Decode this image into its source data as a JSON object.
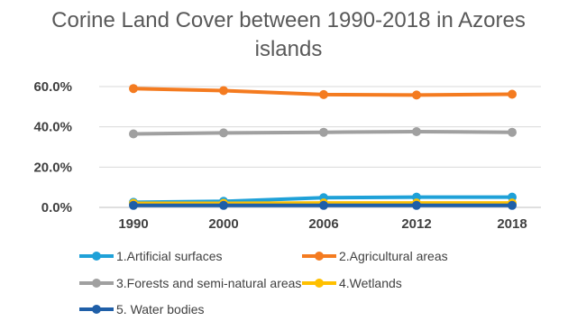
{
  "chart_data": {
    "type": "line",
    "title_lines": [
      "Corine Land Cover between 1990-2018 in Azores",
      "islands"
    ],
    "categories": [
      "1990",
      "2000",
      "2006",
      "2012",
      "2018"
    ],
    "y_ticks": [
      "0.0%",
      "20.0%",
      "40.0%",
      "60.0%"
    ],
    "ylim": [
      0,
      60
    ],
    "grid": true,
    "legend_position": "bottom",
    "series": [
      {
        "name": "1.Artificial surfaces",
        "color": "#1fa1d8",
        "values": [
          2.5,
          3.0,
          4.8,
          5.1,
          5.1
        ]
      },
      {
        "name": "2.Agricultural areas",
        "color": "#f47b20",
        "values": [
          59.0,
          58.0,
          56.0,
          55.8,
          56.2
        ]
      },
      {
        "name": "3.Forests and semi-natural areas",
        "color": "#a0a0a0",
        "values": [
          36.5,
          37.0,
          37.3,
          37.6,
          37.3
        ]
      },
      {
        "name": "4.Wetlands",
        "color": "#ffc000",
        "values": [
          2.0,
          2.0,
          2.2,
          2.2,
          2.2
        ]
      },
      {
        "name": "5. Water bodies",
        "color": "#1f5fa8",
        "values": [
          1.0,
          1.0,
          1.0,
          1.0,
          1.0
        ]
      }
    ]
  }
}
